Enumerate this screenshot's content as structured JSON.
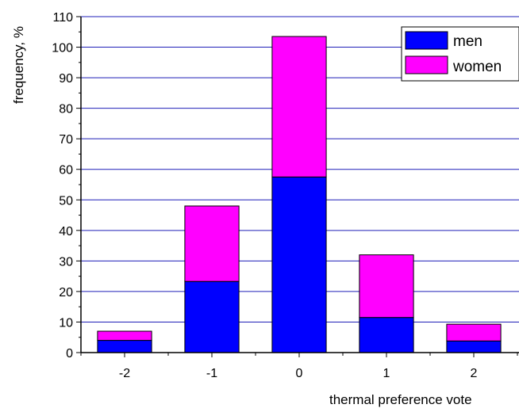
{
  "chart_data": {
    "type": "bar",
    "stacked": true,
    "title": "",
    "xlabel": "thermal preference vote",
    "ylabel": "frequency, %",
    "categories": [
      "-2",
      "-1",
      "0",
      "1",
      "2"
    ],
    "series": [
      {
        "name": "men",
        "color": "#0000ff",
        "values": [
          4,
          23.3,
          57.5,
          11.5,
          3.8
        ]
      },
      {
        "name": "women",
        "color": "#ff00ff",
        "values": [
          3,
          24.7,
          46,
          20.5,
          5.5
        ]
      }
    ],
    "yticks": [
      "0",
      "10",
      "20",
      "30",
      "40",
      "50",
      "60",
      "70",
      "80",
      "90",
      "100",
      "110"
    ],
    "ylim": [
      0,
      110
    ],
    "grid": true,
    "grid_color": "#1f1fb8",
    "legend_position": "top-right"
  }
}
